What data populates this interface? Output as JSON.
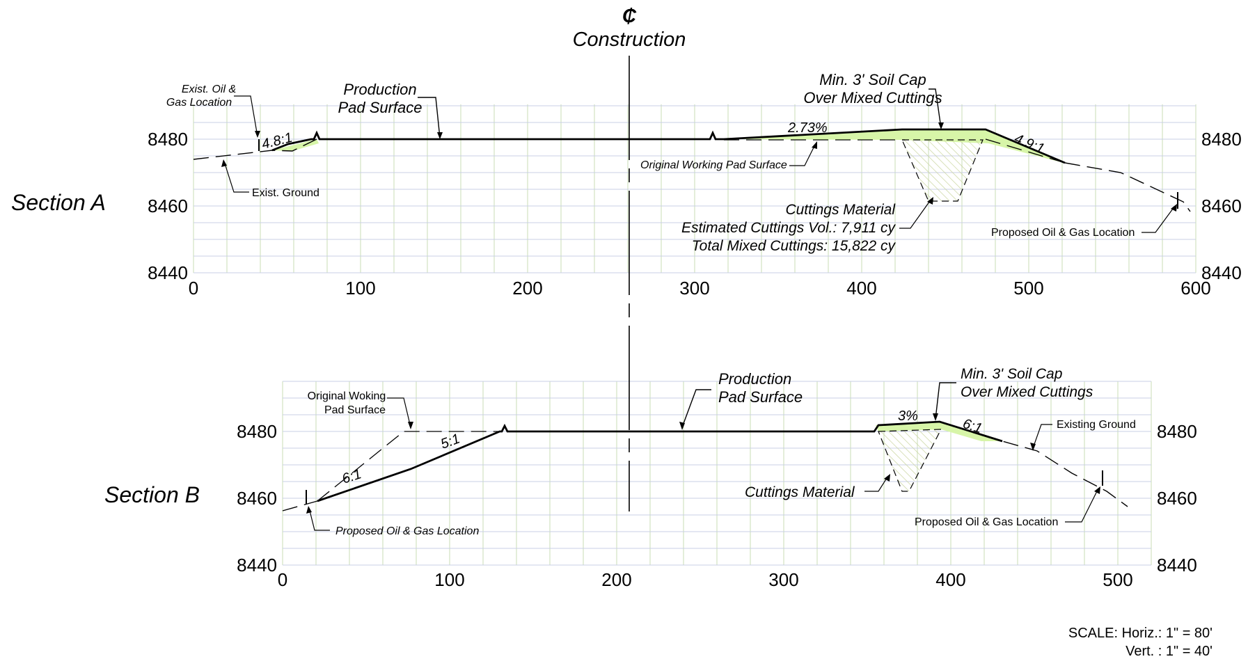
{
  "centerline": {
    "symbol": "₵",
    "label": "Construction"
  },
  "colors": {
    "grid_green": "#c9dcb6",
    "grid_blue": "#c9cfe6",
    "soil_cap": "#d7f5a8",
    "hatch": "#cfd8a8",
    "line": "#000000"
  },
  "section_a": {
    "title": "Section A",
    "x_ticks": [
      "0",
      "100",
      "200",
      "300",
      "400",
      "500",
      "600"
    ],
    "y_ticks": [
      "8480",
      "8460",
      "8440"
    ],
    "labels": {
      "production_pad": [
        "Production",
        "Pad Surface"
      ],
      "soil_cap": [
        "Min. 3' Soil Cap",
        "Over Mixed Cuttings"
      ],
      "exist_location": [
        "Exist. Oil &",
        "Gas Location"
      ],
      "exist_ground": "Exist. Ground",
      "original_pad": "Original Working Pad Surface",
      "cuttings": [
        "Cuttings Material",
        "Estimated Cuttings Vol.: 7,911 cy",
        "Total Mixed Cuttings: 15,822 cy"
      ],
      "proposed_location": "Proposed Oil & Gas Location"
    },
    "slopes": {
      "left": "4.8:1",
      "grade": "2.73%",
      "right": "4.9:1"
    }
  },
  "section_b": {
    "title": "Section B",
    "x_ticks": [
      "0",
      "100",
      "200",
      "300",
      "400",
      "500"
    ],
    "y_ticks": [
      "8480",
      "8460",
      "8440"
    ],
    "labels": {
      "original_pad": [
        "Original  Woking",
        "Pad Surface"
      ],
      "production_pad": [
        "Production",
        "Pad Surface"
      ],
      "soil_cap": [
        "Min. 3' Soil Cap",
        "Over Mixed Cuttings"
      ],
      "existing_ground": "Existing Ground",
      "cuttings": "Cuttings Material",
      "proposed_left": "Proposed Oil & Gas Location",
      "proposed_right": "Proposed Oil & Gas Location"
    },
    "slopes": {
      "s1": "6:1",
      "s2": "5:1",
      "grade": "3%",
      "s3": "6:1"
    }
  },
  "scale": {
    "horiz": "SCALE: Horiz.: 1\" = 80'",
    "vert": "Vert. : 1\" = 40'"
  }
}
